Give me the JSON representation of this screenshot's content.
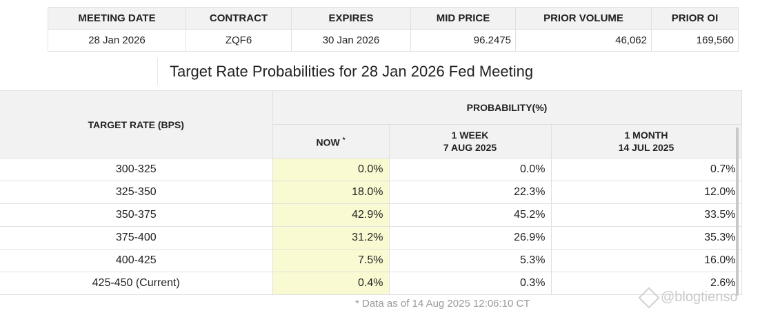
{
  "summary": {
    "headers": [
      "MEETING DATE",
      "CONTRACT",
      "EXPIRES",
      "MID PRICE",
      "PRIOR VOLUME",
      "PRIOR OI"
    ],
    "row": {
      "meeting_date": "28 Jan 2026",
      "contract": "ZQF6",
      "expires": "30 Jan 2026",
      "mid_price": "96.2475",
      "prior_volume": "46,062",
      "prior_oi": "169,560"
    }
  },
  "title": "Target Rate Probabilities for 28 Jan 2026 Fed Meeting",
  "prob": {
    "rate_header": "TARGET RATE (BPS)",
    "prob_header": "PROBABILITY(%)",
    "now_header": "NOW",
    "now_marker": "*",
    "week_header": "1 WEEK",
    "week_date": "7 AUG 2025",
    "month_header": "1 MONTH",
    "month_date": "14 JUL 2025",
    "rows": [
      {
        "rate": "300-325",
        "now": "0.0%",
        "week": "0.0%",
        "month": "0.7%"
      },
      {
        "rate": "325-350",
        "now": "18.0%",
        "week": "22.3%",
        "month": "12.0%"
      },
      {
        "rate": "350-375",
        "now": "42.9%",
        "week": "45.2%",
        "month": "33.5%"
      },
      {
        "rate": "375-400",
        "now": "31.2%",
        "week": "26.9%",
        "month": "35.3%"
      },
      {
        "rate": "400-425",
        "now": "7.5%",
        "week": "5.3%",
        "month": "16.0%"
      },
      {
        "rate": "425-450 (Current)",
        "now": "0.4%",
        "week": "0.3%",
        "month": "2.6%"
      }
    ]
  },
  "footnote": "* Data as of 14 Aug 2025 12:06:10 CT",
  "watermark": "@blogtienso",
  "colors": {
    "now_highlight": "#fafad2",
    "header_bg": "#f2f2f2"
  }
}
